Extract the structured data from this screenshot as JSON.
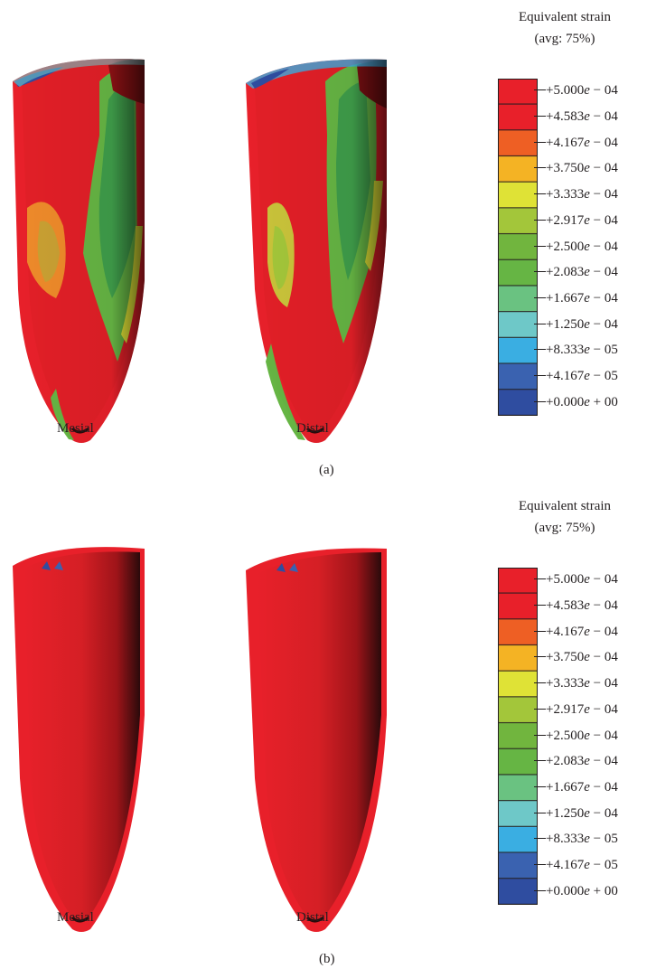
{
  "legend": {
    "title_line1": "Equivalent strain",
    "title_line2": "(avg: 75%)",
    "band_colors": [
      "#e8202a",
      "#e8202a",
      "#ee5f24",
      "#f4b324",
      "#dfe236",
      "#a3c63a",
      "#71b53e",
      "#66b544",
      "#6ac281",
      "#6ec8c8",
      "#3aaee2",
      "#3a62b0",
      "#2f4da0"
    ],
    "ticks": [
      {
        "value": "+5.000",
        "exponent": "− 04"
      },
      {
        "value": "+4.583",
        "exponent": "− 04"
      },
      {
        "value": "+4.167",
        "exponent": "− 04"
      },
      {
        "value": "+3.750",
        "exponent": "− 04"
      },
      {
        "value": "+3.333",
        "exponent": "− 04"
      },
      {
        "value": "+2.917",
        "exponent": "− 04"
      },
      {
        "value": "+2.500",
        "exponent": "− 04"
      },
      {
        "value": "+2.083",
        "exponent": "− 04"
      },
      {
        "value": "+1.667",
        "exponent": "− 04"
      },
      {
        "value": "+1.250",
        "exponent": "− 04"
      },
      {
        "value": "+8.333",
        "exponent": "− 05"
      },
      {
        "value": "+4.167",
        "exponent": "− 05"
      },
      {
        "value": "+0.000",
        "exponent": "+ 00"
      }
    ]
  },
  "panels": [
    {
      "label": "(a)",
      "left_caption": "Mesial",
      "right_caption": "Distal",
      "pattern": "mixed"
    },
    {
      "label": "(b)",
      "left_caption": "Mesial",
      "right_caption": "Distal",
      "pattern": "uniform"
    }
  ],
  "colors": {
    "outer_red": "#e8202a",
    "inner_red": "#c91f23",
    "shadow": "#2a0a0b",
    "text": "#231f20"
  }
}
